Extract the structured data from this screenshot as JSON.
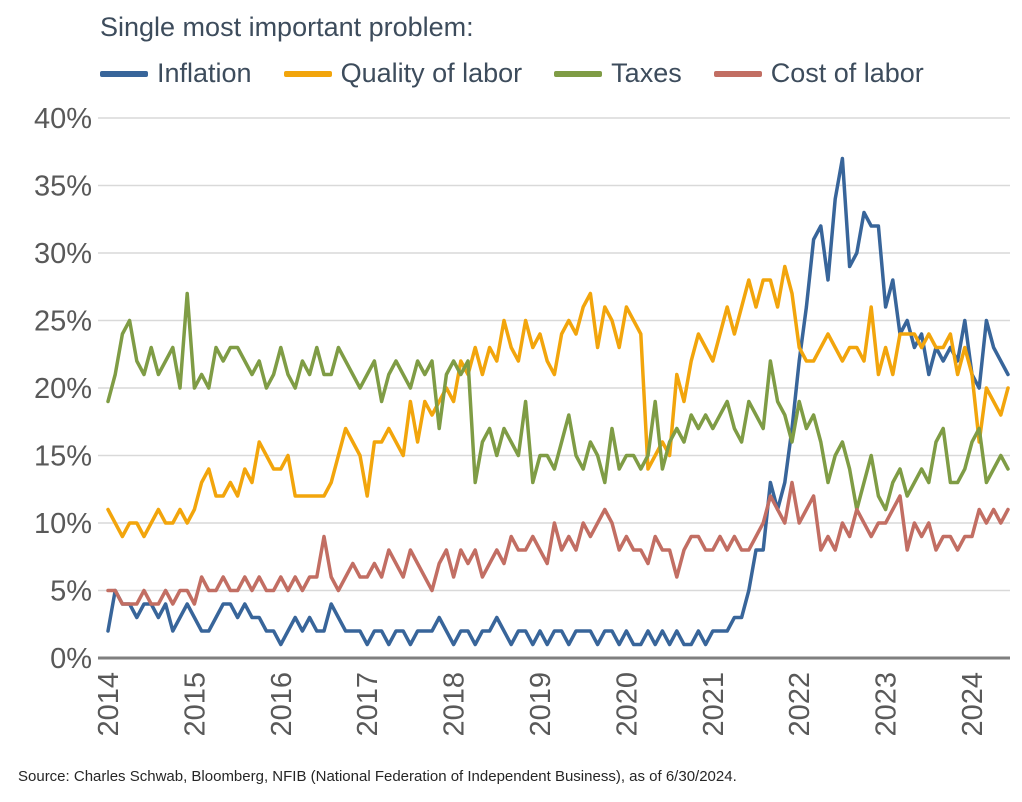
{
  "title": "Single most important problem:",
  "source": "Source: Charles Schwab, Bloomberg, NFIB (National Federation of Independent Business), as of 6/30/2024.",
  "colors": {
    "heading_text": "#3d4c5c",
    "tick_text": "#595959",
    "grid": "#d9d9d9",
    "axis": "#7f7f7f",
    "source_text": "#262626"
  },
  "chart_data": {
    "type": "line",
    "title": "Single most important problem:",
    "xlabel": "",
    "ylabel": "",
    "x_start": "2014-01",
    "x_end": "2024-06",
    "x_frequency": "monthly",
    "x_tick_labels": [
      "2014",
      "2015",
      "2016",
      "2017",
      "2018",
      "2019",
      "2020",
      "2021",
      "2022",
      "2023",
      "2024"
    ],
    "months_per_tick": 12,
    "ylim": [
      0,
      40
    ],
    "ytick_step": 5,
    "ytick_suffix": "%",
    "grid": "horizontal",
    "legend_position": "top",
    "series": [
      {
        "name": "Inflation",
        "color": "#38659a",
        "values": [
          2,
          5,
          4,
          4,
          3,
          4,
          4,
          3,
          4,
          2,
          3,
          4,
          3,
          2,
          2,
          3,
          4,
          4,
          3,
          4,
          3,
          3,
          2,
          2,
          1,
          2,
          3,
          2,
          3,
          2,
          2,
          4,
          3,
          2,
          2,
          2,
          1,
          2,
          2,
          1,
          2,
          2,
          1,
          2,
          2,
          2,
          3,
          2,
          1,
          2,
          2,
          1,
          2,
          2,
          3,
          2,
          1,
          2,
          2,
          1,
          2,
          1,
          2,
          2,
          1,
          2,
          2,
          2,
          1,
          2,
          2,
          1,
          2,
          1,
          1,
          2,
          1,
          2,
          1,
          2,
          1,
          1,
          2,
          1,
          2,
          2,
          2,
          3,
          3,
          5,
          8,
          8,
          13,
          11,
          13,
          17,
          22,
          26,
          31,
          32,
          28,
          34,
          37,
          29,
          30,
          33,
          32,
          32,
          26,
          28,
          24,
          25,
          23,
          24,
          21,
          23,
          22,
          23,
          22,
          25,
          21,
          20,
          25,
          23,
          22,
          21
        ]
      },
      {
        "name": "Quality of labor",
        "color": "#f2a50c",
        "values": [
          11,
          10,
          9,
          10,
          10,
          9,
          10,
          11,
          10,
          10,
          11,
          10,
          11,
          13,
          14,
          12,
          12,
          13,
          12,
          14,
          13,
          16,
          15,
          14,
          14,
          15,
          12,
          12,
          12,
          12,
          12,
          13,
          15,
          17,
          16,
          15,
          12,
          16,
          16,
          17,
          16,
          15,
          19,
          16,
          19,
          18,
          19,
          20,
          19,
          22,
          21,
          23,
          21,
          23,
          22,
          25,
          23,
          22,
          25,
          23,
          24,
          22,
          21,
          24,
          25,
          24,
          26,
          27,
          23,
          26,
          25,
          23,
          26,
          25,
          24,
          14,
          15,
          16,
          15,
          21,
          19,
          22,
          24,
          23,
          22,
          24,
          26,
          24,
          26,
          28,
          26,
          28,
          28,
          26,
          29,
          27,
          23,
          22,
          22,
          23,
          24,
          23,
          22,
          23,
          23,
          22,
          26,
          21,
          23,
          21,
          24,
          24,
          24,
          23,
          24,
          23,
          23,
          24,
          21,
          23,
          21,
          16,
          20,
          19,
          18,
          20
        ]
      },
      {
        "name": "Taxes",
        "color": "#7f9c45",
        "values": [
          19,
          21,
          24,
          25,
          22,
          21,
          23,
          21,
          22,
          23,
          20,
          27,
          20,
          21,
          20,
          23,
          22,
          23,
          23,
          22,
          21,
          22,
          20,
          21,
          23,
          21,
          20,
          22,
          21,
          23,
          21,
          21,
          23,
          22,
          21,
          20,
          21,
          22,
          19,
          21,
          22,
          21,
          20,
          22,
          21,
          22,
          17,
          21,
          22,
          21,
          22,
          13,
          16,
          17,
          15,
          17,
          16,
          15,
          19,
          13,
          15,
          15,
          14,
          16,
          18,
          15,
          14,
          16,
          15,
          13,
          17,
          14,
          15,
          15,
          14,
          15,
          19,
          14,
          16,
          17,
          16,
          18,
          17,
          18,
          17,
          18,
          19,
          17,
          16,
          19,
          18,
          17,
          22,
          19,
          18,
          16,
          19,
          17,
          18,
          16,
          13,
          15,
          16,
          14,
          11,
          13,
          15,
          12,
          11,
          13,
          14,
          12,
          13,
          14,
          13,
          16,
          17,
          13,
          13,
          14,
          16,
          17,
          13,
          14,
          15,
          14
        ]
      },
      {
        "name": "Cost of labor",
        "color": "#c26e63",
        "values": [
          5,
          5,
          4,
          4,
          4,
          5,
          4,
          4,
          5,
          4,
          5,
          5,
          4,
          6,
          5,
          5,
          6,
          5,
          5,
          6,
          5,
          6,
          5,
          5,
          6,
          5,
          6,
          5,
          6,
          6,
          9,
          6,
          5,
          6,
          7,
          6,
          6,
          7,
          6,
          8,
          7,
          6,
          8,
          7,
          6,
          5,
          7,
          8,
          6,
          8,
          7,
          8,
          6,
          7,
          8,
          7,
          9,
          8,
          8,
          9,
          8,
          7,
          10,
          8,
          9,
          8,
          10,
          9,
          10,
          11,
          10,
          8,
          9,
          8,
          8,
          7,
          9,
          8,
          8,
          6,
          8,
          9,
          9,
          8,
          8,
          9,
          8,
          9,
          8,
          8,
          9,
          10,
          12,
          11,
          10,
          13,
          10,
          11,
          12,
          8,
          9,
          8,
          10,
          9,
          11,
          10,
          9,
          10,
          10,
          11,
          12,
          8,
          10,
          9,
          10,
          8,
          9,
          9,
          8,
          9,
          9,
          11,
          10,
          11,
          10,
          11
        ]
      }
    ]
  }
}
